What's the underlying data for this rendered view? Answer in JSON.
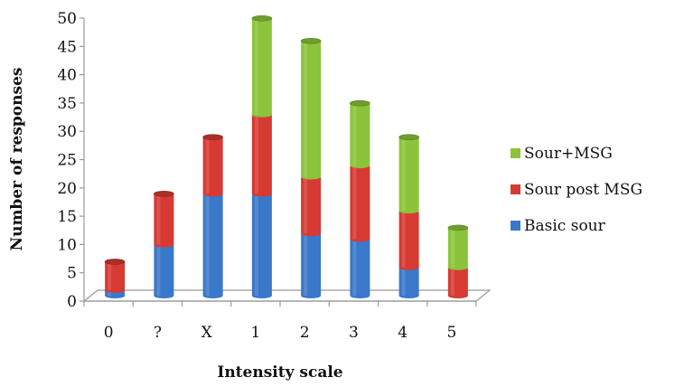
{
  "chart_data": {
    "type": "bar",
    "stacked": true,
    "three_d": true,
    "categories": [
      "0",
      "?",
      "X",
      "1",
      "2",
      "3",
      "4",
      "5"
    ],
    "series": [
      {
        "name": "Basic sour",
        "color": "#3a78c9",
        "values": [
          1,
          9,
          18,
          18,
          11,
          10,
          5,
          0
        ]
      },
      {
        "name": "Sour post MSG",
        "color": "#d63a32",
        "values": [
          5,
          9,
          10,
          14,
          10,
          13,
          10,
          5
        ]
      },
      {
        "name": "Sour+MSG",
        "color": "#8bc43a",
        "values": [
          0,
          0,
          0,
          17,
          24,
          11,
          13,
          7
        ]
      }
    ],
    "legend_order": [
      "Sour+MSG",
      "Sour post MSG",
      "Basic sour"
    ],
    "legend_position": "right",
    "xlabel": "Intensity scale",
    "ylabel": "Number of responses",
    "ylim": [
      0,
      50
    ],
    "yticks": [
      0,
      5,
      10,
      15,
      20,
      25,
      30,
      35,
      40,
      45,
      50
    ],
    "grid": false
  }
}
